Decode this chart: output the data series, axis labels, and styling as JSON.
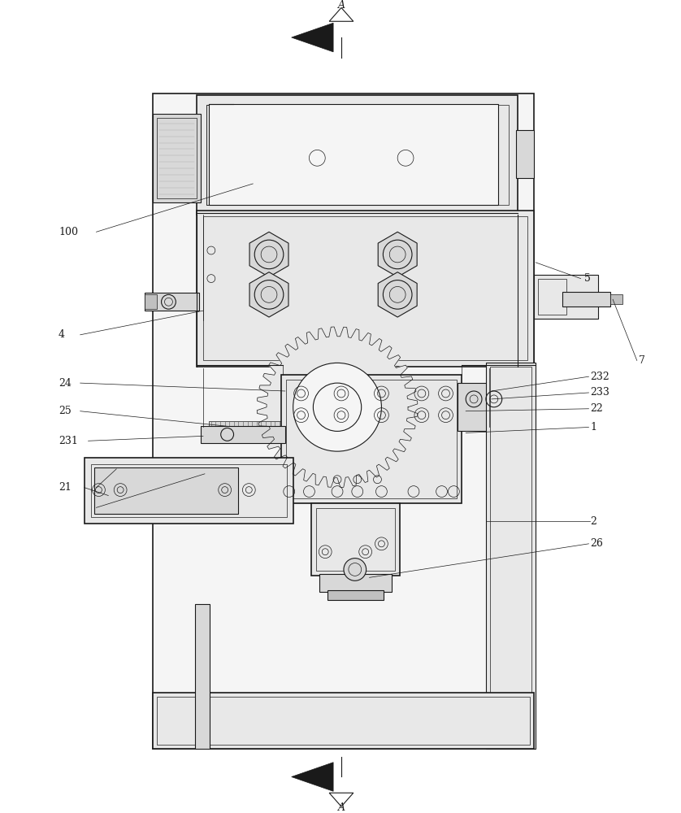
{
  "bg_color": "#ffffff",
  "line_color": "#1a1a1a",
  "gray1": "#f5f5f5",
  "gray2": "#e8e8e8",
  "gray3": "#d8d8d8",
  "gray4": "#c0c0c0"
}
